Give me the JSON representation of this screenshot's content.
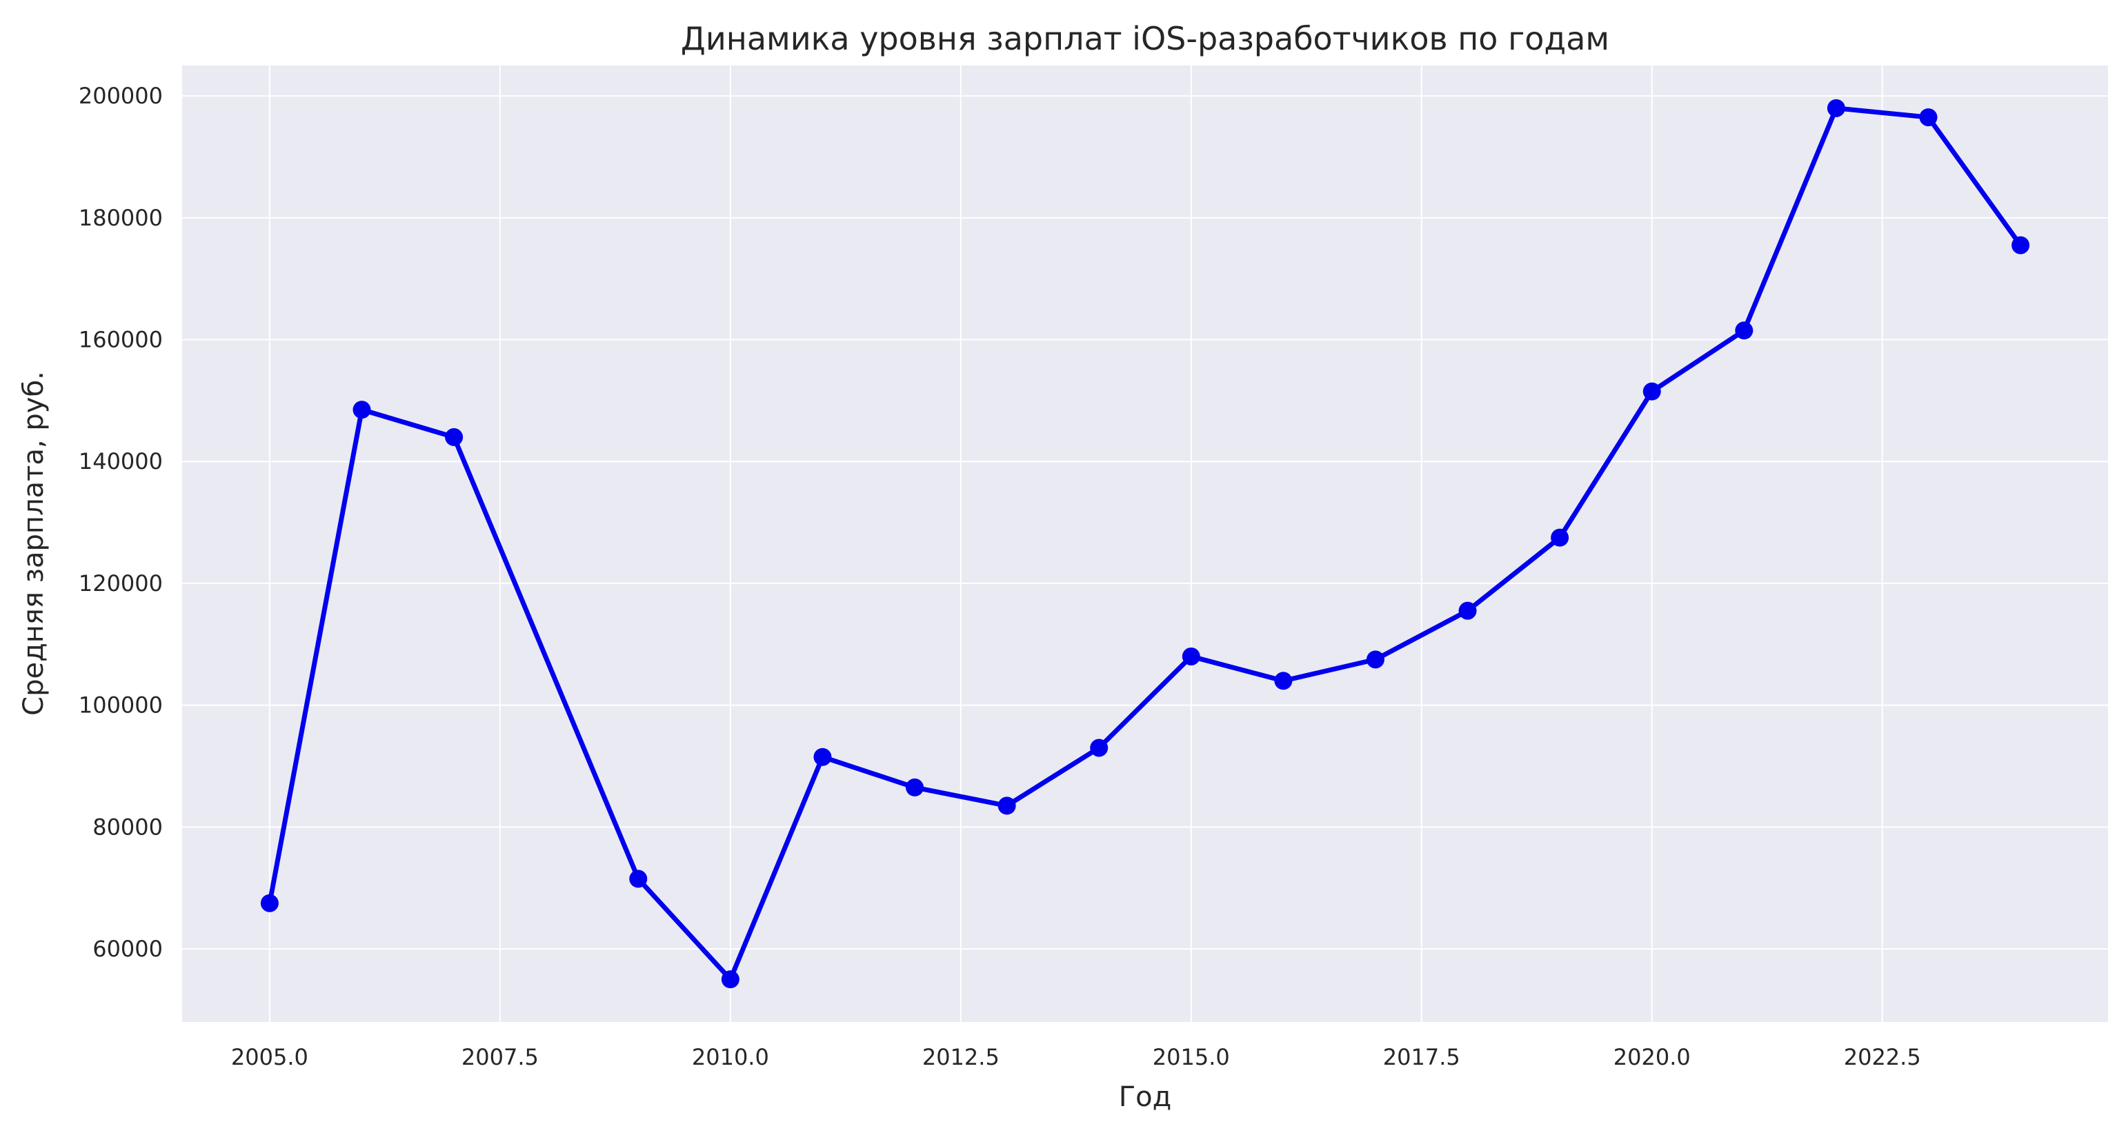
{
  "chart_data": {
    "type": "line",
    "title": "Динамика уровня зарплат iOS-разработчиков по годам",
    "xlabel": "Год",
    "ylabel": "Средняя зарплата, руб.",
    "x": [
      2005,
      2006,
      2007,
      2009,
      2010,
      2011,
      2012,
      2013,
      2014,
      2015,
      2016,
      2017,
      2018,
      2019,
      2020,
      2021,
      2022,
      2023,
      2024
    ],
    "series": [
      {
        "values": [
          67500,
          148500,
          144000,
          71500,
          55000,
          91500,
          86500,
          83500,
          93000,
          108000,
          104000,
          107500,
          115500,
          127500,
          151500,
          161500,
          198000,
          196500,
          175500
        ],
        "color": "#0000ee"
      }
    ],
    "xticks": [
      "2005.0",
      "2007.5",
      "2010.0",
      "2012.5",
      "2015.0",
      "2017.5",
      "2020.0",
      "2022.5"
    ],
    "yticks": [
      "60000",
      "80000",
      "100000",
      "120000",
      "140000",
      "160000",
      "180000",
      "200000"
    ],
    "xlim": [
      2004.05,
      2024.95
    ],
    "ylim": [
      48000,
      205000
    ],
    "grid": true,
    "legend": "none",
    "plot_background": "#eaeaf2",
    "grid_color": "#ffffff"
  }
}
